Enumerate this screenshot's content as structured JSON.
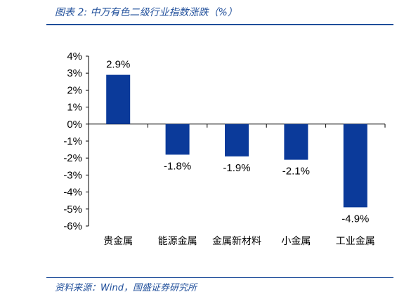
{
  "figure": {
    "title": "图表 2:  中万有色二级行业指数涨跌（%）",
    "source": "资料来源：Wind，国盛证券研究所"
  },
  "colors": {
    "bar": "#0b3a9a",
    "rule": "#1f4e9a",
    "text_accent": "#1f4e9a"
  },
  "chart_data": {
    "type": "bar",
    "categories": [
      "贵金属",
      "能源金属",
      "金属新材料",
      "小金属",
      "工业金属"
    ],
    "values": [
      2.9,
      -1.8,
      -1.9,
      -2.1,
      -4.9
    ],
    "data_labels": [
      "2.9%",
      "-1.8%",
      "-1.9%",
      "-2.1%",
      "-4.9%"
    ],
    "title": "",
    "xlabel": "",
    "ylabel": "",
    "ylim": [
      -6,
      4
    ],
    "yticks": [
      4,
      3,
      2,
      1,
      0,
      -1,
      -2,
      -3,
      -4,
      -5,
      -6
    ],
    "ytick_labels": [
      "4%",
      "3%",
      "2%",
      "1%",
      "0%",
      "-1%",
      "-2%",
      "-3%",
      "-4%",
      "-5%",
      "-6%"
    ],
    "grid": false,
    "legend": "none"
  }
}
